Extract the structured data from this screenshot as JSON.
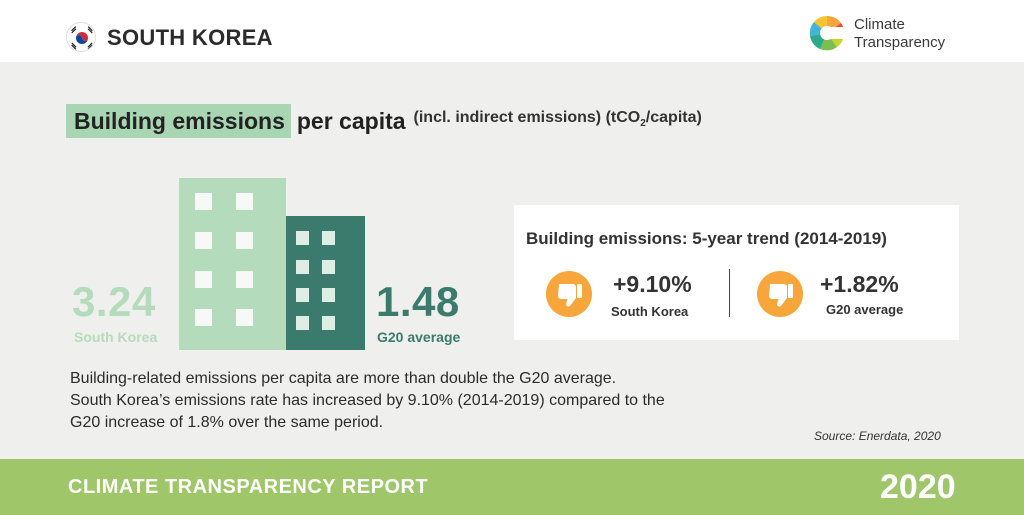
{
  "header": {
    "country": "SOUTH KOREA",
    "logo_line1": "Climate",
    "logo_line2": "Transparency",
    "flag_icon": "south-korea-flag-icon",
    "logo_icon": "climate-transparency-logo-icon"
  },
  "title": {
    "highlight": "Building emissions",
    "rest": "per capita",
    "sub_prefix": "(incl. indirect emissions) (tCO",
    "sub_subscript": "2",
    "sub_suffix": "/capita)"
  },
  "comparison": {
    "left_value": "3.24",
    "left_label": "South Korea",
    "right_value": "1.48",
    "right_label": "G20 average",
    "colors": {
      "south_korea": "#b4dcbc",
      "g20": "#3b7b6d"
    }
  },
  "trend": {
    "title": "Building emissions: 5-year trend (2014-2019)",
    "items": [
      {
        "value": "+9.10%",
        "label": "South Korea",
        "icon": "thumbs-down-icon"
      },
      {
        "value": "+1.82%",
        "label": "G20 average",
        "icon": "thumbs-down-icon"
      }
    ],
    "icon_color": "#f6a63a"
  },
  "description": {
    "line1": "Building-related emissions per capita are more than double the G20 average.",
    "line2": "South Korea’s emissions rate has increased by 9.10% (2014-2019) compared to the",
    "line3": "G20 increase of 1.8% over the same period."
  },
  "source": "Source: Enerdata, 2020",
  "footer": {
    "left": "CLIMATE TRANSPARENCY REPORT",
    "year": "2020",
    "color": "#9fc76a"
  }
}
